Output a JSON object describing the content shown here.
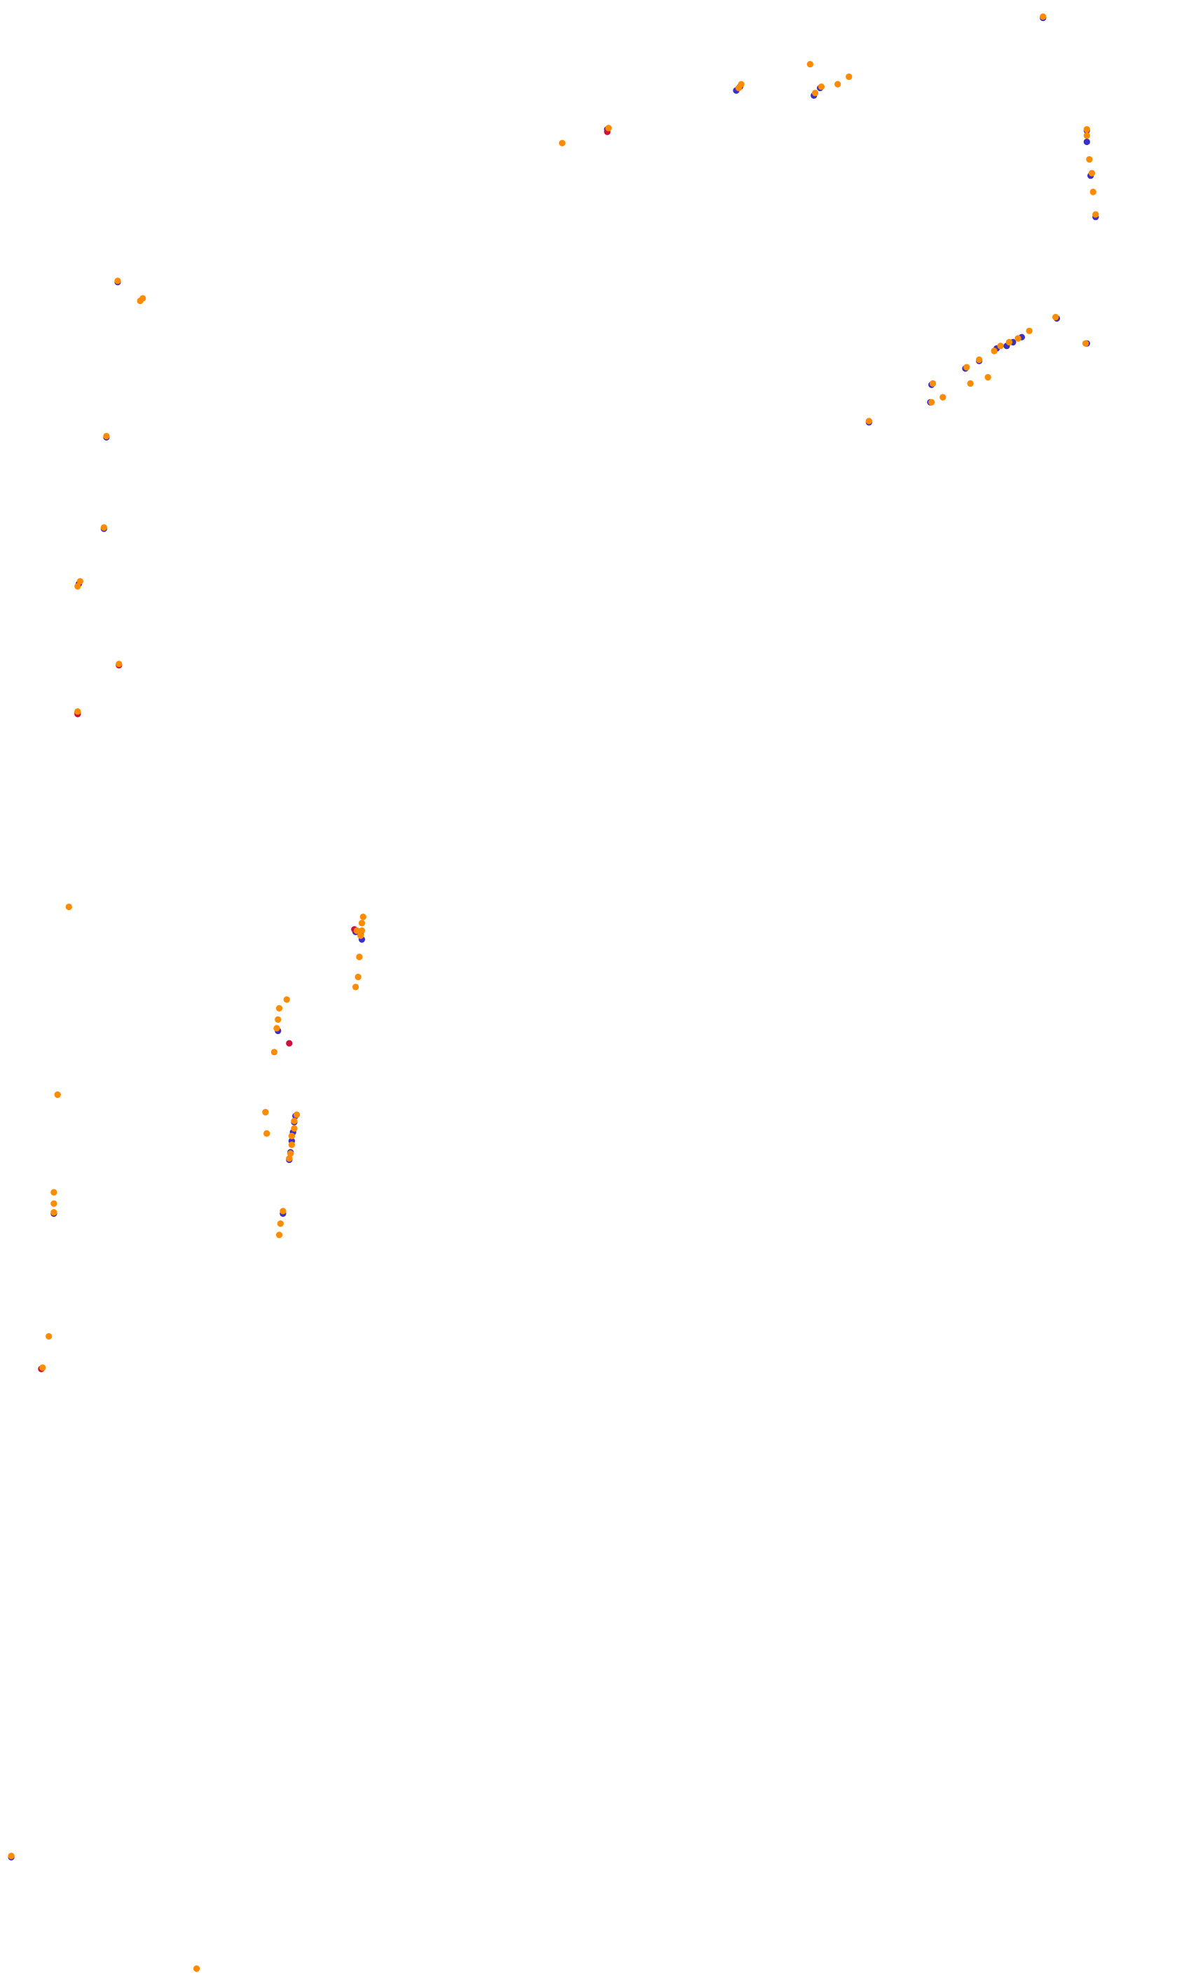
{
  "chart_data": {
    "type": "scatter",
    "title": "",
    "xlabel": "",
    "ylabel": "",
    "axes_visible": false,
    "grid": false,
    "legend": "none",
    "xlim": [
      0,
      940
    ],
    "ylim": [
      1568,
      0
    ],
    "colors": {
      "background": "#ffffff",
      "orange": "#ff8c00",
      "blue": "#3a2fc8",
      "red": "#d0103a"
    },
    "series": [
      {
        "color_key": "blue",
        "points": [
          [
            833,
            6
          ],
          [
            485,
            95
          ],
          [
            588,
            64
          ],
          [
            591,
            61
          ],
          [
            650,
            68
          ],
          [
            655,
            62
          ],
          [
            868,
            96
          ],
          [
            868,
            105
          ],
          [
            871,
            132
          ],
          [
            875,
            165
          ],
          [
            94,
            217
          ],
          [
            85,
            341
          ],
          [
            83,
            414
          ],
          [
            63,
            458
          ],
          [
            62,
            561
          ],
          [
            743,
            313
          ],
          [
            744,
            299
          ],
          [
            771,
            286
          ],
          [
            782,
            280
          ],
          [
            796,
            270
          ],
          [
            804,
            268
          ],
          [
            809,
            265
          ],
          [
            816,
            261
          ],
          [
            868,
            266
          ],
          [
            694,
            329
          ],
          [
            844,
            246
          ],
          [
            289,
            742
          ],
          [
            288,
            738
          ],
          [
            284,
            736
          ],
          [
            222,
            815
          ],
          [
            236,
            883
          ],
          [
            235,
            888
          ],
          [
            234,
            896
          ],
          [
            233,
            903
          ],
          [
            232,
            912
          ],
          [
            231,
            918
          ],
          [
            43,
            961
          ],
          [
            226,
            961
          ],
          [
            33,
            1085
          ],
          [
            9,
            1475
          ]
        ]
      },
      {
        "color_key": "red",
        "points": [
          [
            485,
            97
          ],
          [
            95,
            523
          ],
          [
            62,
            562
          ],
          [
            283,
            734
          ],
          [
            231,
            825
          ],
          [
            33,
            1085
          ]
        ]
      },
      {
        "color_key": "orange",
        "points": [
          [
            833,
            5
          ],
          [
            647,
            43
          ],
          [
            656,
            61
          ],
          [
            669,
            59
          ],
          [
            678,
            53
          ],
          [
            592,
            59
          ],
          [
            590,
            62
          ],
          [
            651,
            66
          ],
          [
            486,
            94
          ],
          [
            449,
            106
          ],
          [
            868,
            95
          ],
          [
            868,
            100
          ],
          [
            870,
            119
          ],
          [
            872,
            130
          ],
          [
            873,
            145
          ],
          [
            875,
            163
          ],
          [
            94,
            216
          ],
          [
            114,
            230
          ],
          [
            112,
            232
          ],
          [
            85,
            340
          ],
          [
            83,
            413
          ],
          [
            64,
            456
          ],
          [
            62,
            460
          ],
          [
            95,
            522
          ],
          [
            62,
            560
          ],
          [
            822,
            256
          ],
          [
            813,
            262
          ],
          [
            806,
            265
          ],
          [
            799,
            268
          ],
          [
            794,
            272
          ],
          [
            782,
            279
          ],
          [
            789,
            293
          ],
          [
            772,
            285
          ],
          [
            775,
            298
          ],
          [
            753,
            309
          ],
          [
            745,
            298
          ],
          [
            744,
            313
          ],
          [
            694,
            328
          ],
          [
            843,
            245
          ],
          [
            867,
            266
          ],
          [
            55,
            716
          ],
          [
            290,
            724
          ],
          [
            289,
            729
          ],
          [
            289,
            735
          ],
          [
            288,
            739
          ],
          [
            285,
            735
          ],
          [
            287,
            756
          ],
          [
            286,
            772
          ],
          [
            284,
            780
          ],
          [
            229,
            790
          ],
          [
            223,
            797
          ],
          [
            222,
            806
          ],
          [
            221,
            813
          ],
          [
            219,
            832
          ],
          [
            46,
            866
          ],
          [
            212,
            880
          ],
          [
            237,
            882
          ],
          [
            235,
            887
          ],
          [
            235,
            893
          ],
          [
            213,
            897
          ],
          [
            233,
            899
          ],
          [
            233,
            906
          ],
          [
            232,
            913
          ],
          [
            231,
            917
          ],
          [
            43,
            944
          ],
          [
            43,
            953
          ],
          [
            43,
            960
          ],
          [
            226,
            959
          ],
          [
            224,
            969
          ],
          [
            223,
            978
          ],
          [
            39,
            1059
          ],
          [
            34,
            1084
          ],
          [
            9,
            1474
          ],
          [
            157,
            1564
          ]
        ]
      }
    ]
  }
}
